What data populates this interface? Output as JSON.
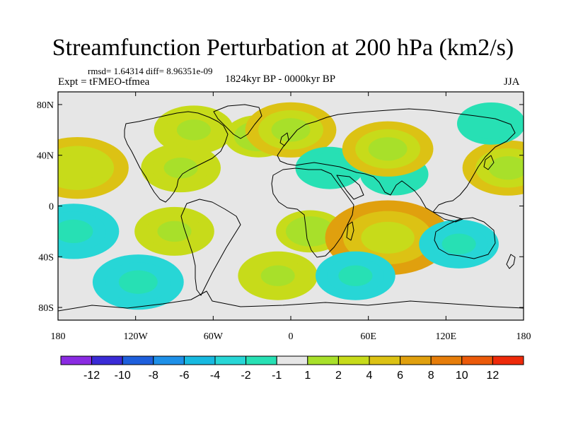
{
  "title": "Streamfunction Perturbation at 200 hPa (km2/s)",
  "stats": "rmsd= 1.64314 diff= 8.96351e-09",
  "experiment": "Expt = tFMEO-tfmea",
  "period": "1824kyr BP - 0000kyr BP",
  "season": "JJA",
  "chart_data": {
    "type": "heatmap",
    "projection": "cylindrical-equidistant",
    "variable": "streamfunction perturbation",
    "units": "km2/s",
    "level": "200 hPa",
    "xlim": [
      -180,
      180
    ],
    "ylim": [
      -90,
      90
    ],
    "x_ticks": [
      {
        "value": -180,
        "label": "180"
      },
      {
        "value": -120,
        "label": "120W"
      },
      {
        "value": -60,
        "label": "60W"
      },
      {
        "value": 0,
        "label": "0"
      },
      {
        "value": 60,
        "label": "60E"
      },
      {
        "value": 120,
        "label": "120E"
      },
      {
        "value": 180,
        "label": "180"
      }
    ],
    "y_ticks": [
      {
        "value": 80,
        "label": "80N"
      },
      {
        "value": 40,
        "label": "40N"
      },
      {
        "value": 0,
        "label": "0"
      },
      {
        "value": -40,
        "label": "40S"
      },
      {
        "value": -80,
        "label": "80S"
      }
    ],
    "colorbar": {
      "colors": [
        "#8a2be2",
        "#3a2bd6",
        "#1e5fdc",
        "#1e90e8",
        "#17b9e0",
        "#27d6d6",
        "#27e0b4",
        "#e6e6e6",
        "#a8e02a",
        "#c7db1a",
        "#dcc214",
        "#e0a00e",
        "#e67d0a",
        "#eb5a0a",
        "#ee2a0a"
      ],
      "labels": [
        "-12",
        "-10",
        "-8",
        "-6",
        "-4",
        "-2",
        "-1",
        "1",
        "2",
        "4",
        "6",
        "8",
        "10",
        "12"
      ]
    },
    "anomalies": [
      {
        "lon": -165,
        "lat": 30,
        "value": 5
      },
      {
        "lon": -168,
        "lat": -20,
        "value": -4
      },
      {
        "lon": -118,
        "lat": -60,
        "value": -4
      },
      {
        "lon": -85,
        "lat": 30,
        "value": 3
      },
      {
        "lon": -75,
        "lat": 60,
        "value": 3
      },
      {
        "lon": -90,
        "lat": -20,
        "value": 3
      },
      {
        "lon": -25,
        "lat": 55,
        "value": 2
      },
      {
        "lon": 0,
        "lat": 60,
        "value": 4
      },
      {
        "lon": 30,
        "lat": 30,
        "value": -2
      },
      {
        "lon": 80,
        "lat": 25,
        "value": -2
      },
      {
        "lon": 15,
        "lat": -20,
        "value": 2
      },
      {
        "lon": 75,
        "lat": -25,
        "value": 7
      },
      {
        "lon": -10,
        "lat": -55,
        "value": 3
      },
      {
        "lon": 50,
        "lat": -55,
        "value": -3
      },
      {
        "lon": 75,
        "lat": 45,
        "value": 4
      },
      {
        "lon": 130,
        "lat": -30,
        "value": -3
      },
      {
        "lon": 168,
        "lat": 30,
        "value": 4
      },
      {
        "lon": 155,
        "lat": 65,
        "value": -2
      }
    ]
  }
}
